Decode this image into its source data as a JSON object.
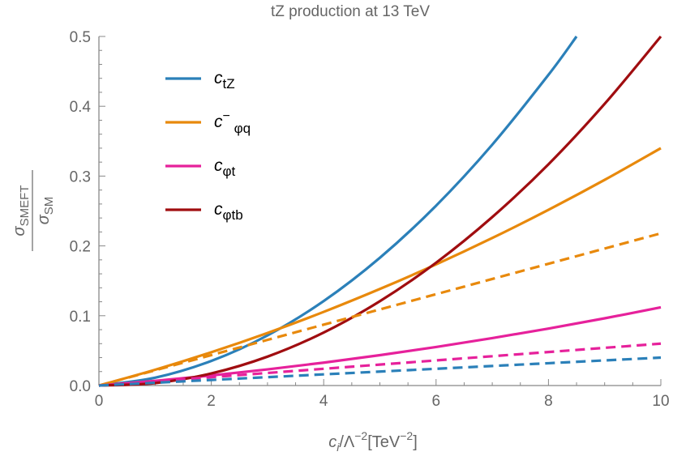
{
  "chart_data": {
    "type": "line",
    "title": "tZ production at 13 TeV",
    "xlabel": {
      "base": "c",
      "sub": "i",
      "mid": "/Λ",
      "sup": "−2",
      "unit": "[TeV",
      "unit_sup": "−2",
      "unit_end": "]"
    },
    "ylabel": {
      "num": "σ",
      "num_sub": "SMEFT",
      "den": "σ",
      "den_sub": "SM"
    },
    "xlim": [
      0,
      10
    ],
    "ylim": [
      0,
      0.5
    ],
    "xticks": [
      "0",
      "2",
      "4",
      "6",
      "8",
      "10"
    ],
    "yticks": [
      "0.0",
      "0.1",
      "0.2",
      "0.3",
      "0.4",
      "0.5"
    ],
    "grid": false,
    "legend_position": "top-left",
    "x": [
      0,
      1,
      2,
      3,
      4,
      5,
      6,
      7,
      8,
      9,
      10
    ],
    "series": [
      {
        "name": "ctZ",
        "legend": {
          "base": "c",
          "sub": "tZ"
        },
        "color": "#2b80b9",
        "style": "solid",
        "values": [
          0,
          0.0112,
          0.0352,
          0.0718,
          0.121,
          0.183,
          0.2576,
          0.345,
          0.445,
          0.5,
          null
        ],
        "x_end": 8.5
      },
      {
        "name": "c−φq",
        "legend": {
          "base": "c",
          "sup": "−",
          "sub": "φq"
        },
        "color": "#e8890c",
        "style": "solid",
        "values": [
          0,
          0.0226,
          0.0477,
          0.0753,
          0.1055,
          0.1383,
          0.1735,
          0.2113,
          0.2517,
          0.2946,
          0.34
        ]
      },
      {
        "name": "cφt",
        "legend": {
          "base": "c",
          "sub": "φt"
        },
        "color": "#e6219b",
        "style": "solid",
        "values": [
          0,
          0.0067,
          0.0144,
          0.0231,
          0.0328,
          0.0435,
          0.0552,
          0.0679,
          0.0816,
          0.0963,
          0.112
        ]
      },
      {
        "name": "cφtb",
        "legend": {
          "base": "c",
          "sub": "φtb"
        },
        "color": "#a00d10",
        "style": "solid",
        "values": [
          0,
          0.0035,
          0.0173,
          0.0414,
          0.0759,
          0.1208,
          0.1759,
          0.2413,
          0.3169,
          0.4035,
          0.5
        ]
      },
      {
        "color": "#e8890c",
        "style": "dashed",
        "values": [
          0,
          0.0218,
          0.0436,
          0.0654,
          0.0872,
          0.109,
          0.1308,
          0.1526,
          0.1744,
          0.1962,
          0.218
        ]
      },
      {
        "color": "#e6219b",
        "style": "dashed",
        "values": [
          0,
          0.006,
          0.012,
          0.018,
          0.024,
          0.03,
          0.036,
          0.042,
          0.048,
          0.054,
          0.06
        ]
      },
      {
        "color": "#2b80b9",
        "style": "dashed",
        "values": [
          0,
          0.004,
          0.008,
          0.012,
          0.016,
          0.02,
          0.024,
          0.028,
          0.032,
          0.036,
          0.04
        ]
      }
    ]
  }
}
